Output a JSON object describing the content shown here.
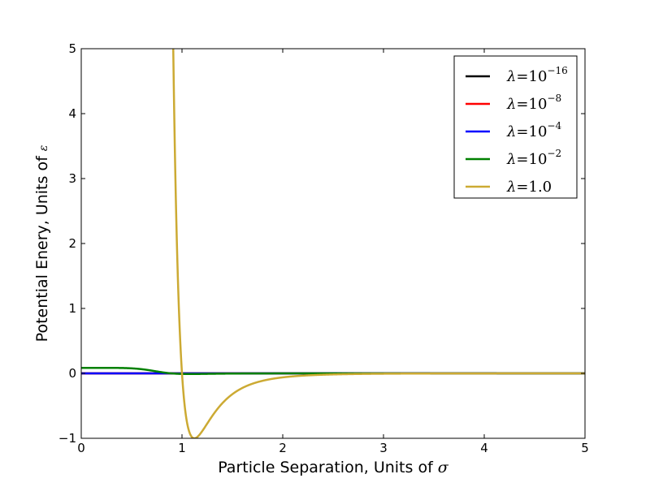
{
  "chart_data": {
    "type": "line",
    "title": "",
    "xlabel_text": "Particle Separation, Units of ",
    "xlabel_symbol": "σ",
    "ylabel_text": "Potential Enery, Units of ",
    "ylabel_symbol": "ε",
    "xlim": [
      0,
      5
    ],
    "ylim": [
      -1,
      5
    ],
    "xticks": [
      "0",
      "1",
      "2",
      "3",
      "4",
      "5"
    ],
    "yticks": [
      "−1",
      "0",
      "1",
      "2",
      "3",
      "4",
      "5"
    ],
    "grid": false,
    "legend_position": "top-right",
    "series": [
      {
        "name": "λ=10−16",
        "lambda_text": "λ",
        "eq_text": "=10",
        "exp_text": "−16",
        "color": "#000000",
        "lambda": 1e-16
      },
      {
        "name": "λ=10−8",
        "lambda_text": "λ",
        "eq_text": "=10",
        "exp_text": "−8",
        "color": "#ff0000",
        "lambda": 1e-08
      },
      {
        "name": "λ=10−4",
        "lambda_text": "λ",
        "eq_text": "=10",
        "exp_text": "−4",
        "color": "#0000ff",
        "lambda": 0.0001
      },
      {
        "name": "λ=10−2",
        "lambda_text": "λ",
        "eq_text": "=10",
        "exp_text": "−2",
        "color": "#008000",
        "lambda": 0.01
      },
      {
        "name": "λ=1.0",
        "lambda_text": "λ",
        "eq_text": "=1.0",
        "exp_text": "",
        "color": "#ccaa33",
        "lambda": 1.0
      }
    ]
  }
}
